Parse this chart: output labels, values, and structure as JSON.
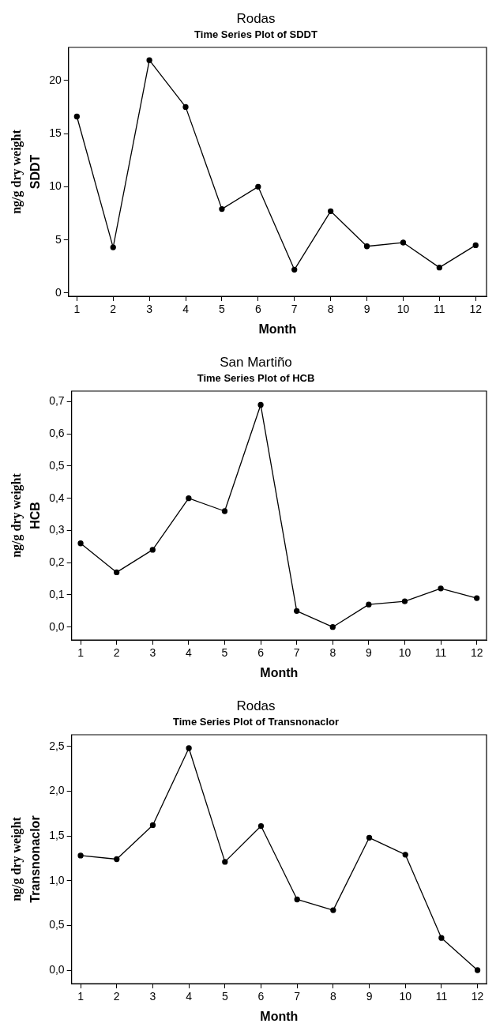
{
  "chart_data": [
    {
      "type": "line",
      "title": "Rodas",
      "subtitle": "Time Series Plot of SDDT",
      "xlabel": "Month",
      "ylabel": "SDDT",
      "annotations": [
        "ng/g dry weight"
      ],
      "x": [
        1,
        2,
        3,
        4,
        5,
        6,
        7,
        8,
        9,
        10,
        11,
        12
      ],
      "series": [
        {
          "color": "#000000",
          "values": [
            16.6,
            4.3,
            21.9,
            17.5,
            7.9,
            10.0,
            2.2,
            7.7,
            4.4,
            4.75,
            2.4,
            4.5
          ]
        }
      ],
      "xlim": [
        0.77,
        12.3
      ],
      "ylim": [
        -0.3,
        23.1
      ],
      "xticks": [
        1,
        2,
        3,
        4,
        5,
        6,
        7,
        8,
        9,
        10,
        11,
        12
      ],
      "yticks": [
        0,
        5,
        10,
        15,
        20
      ],
      "grid": false,
      "legend": false,
      "marker": "circle",
      "line_style": "solid"
    },
    {
      "type": "line",
      "title": "San Martiño",
      "subtitle": "Time Series Plot of HCB",
      "xlabel": "Month",
      "ylabel": "HCB",
      "annotations": [
        "ng/g dry weight"
      ],
      "x": [
        1,
        2,
        3,
        4,
        5,
        6,
        7,
        8,
        9,
        10,
        11,
        12
      ],
      "series": [
        {
          "color": "#000000",
          "values": [
            0.26,
            0.17,
            0.24,
            0.4,
            0.36,
            0.69,
            0.05,
            0.0,
            0.07,
            0.08,
            0.12,
            0.09
          ]
        }
      ],
      "xlim": [
        0.75,
        12.27
      ],
      "ylim": [
        -0.04,
        0.733
      ],
      "xticks": [
        1,
        2,
        3,
        4,
        5,
        6,
        7,
        8,
        9,
        10,
        11,
        12
      ],
      "yticks": [
        {
          "value": 0,
          "label": "0,0"
        },
        {
          "value": 0.1,
          "label": "0,1"
        },
        {
          "value": 0.2,
          "label": "0,2"
        },
        {
          "value": 0.3,
          "label": "0,3"
        },
        {
          "value": 0.4,
          "label": "0,4"
        },
        {
          "value": 0.5,
          "label": "0,5"
        },
        {
          "value": 0.6,
          "label": "0,6"
        },
        {
          "value": 0.7,
          "label": "0,7"
        }
      ],
      "grid": false,
      "legend": false,
      "marker": "circle",
      "line_style": "solid"
    },
    {
      "type": "line",
      "title": "Rodas",
      "subtitle": "Time Series Plot of Transnonaclor",
      "xlabel": "Month",
      "ylabel": "Transnonaclor",
      "annotations": [
        "ng/g dry weight"
      ],
      "x": [
        1,
        2,
        3,
        4,
        5,
        6,
        7,
        8,
        9,
        10,
        11,
        12
      ],
      "series": [
        {
          "color": "#000000",
          "values": [
            1.28,
            1.24,
            1.62,
            2.48,
            1.21,
            1.61,
            0.79,
            0.67,
            1.48,
            1.29,
            0.36,
            0.0
          ]
        }
      ],
      "xlim": [
        0.75,
        12.25
      ],
      "ylim": [
        -0.15,
        2.63
      ],
      "xticks": [
        1,
        2,
        3,
        4,
        5,
        6,
        7,
        8,
        9,
        10,
        11,
        12
      ],
      "yticks": [
        {
          "value": 0,
          "label": "0,0"
        },
        {
          "value": 0.5,
          "label": "0,5"
        },
        {
          "value": 1,
          "label": "1,0"
        },
        {
          "value": 1.5,
          "label": "1,5"
        },
        {
          "value": 2,
          "label": "2,0"
        },
        {
          "value": 2.5,
          "label": "2,5"
        }
      ],
      "grid": false,
      "legend": false,
      "marker": "circle",
      "line_style": "solid"
    }
  ]
}
